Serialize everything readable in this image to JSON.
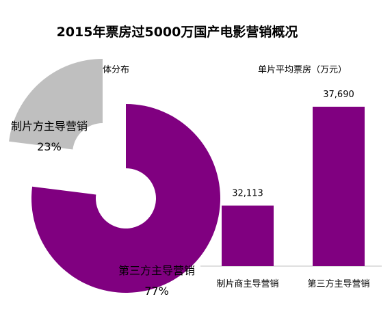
{
  "title": "2015年票房过5000万国产电影营销概况",
  "colors": {
    "primary": "#800080",
    "secondary": "#bfbfbf",
    "axis": "#bfbfbf",
    "background": "#ffffff"
  },
  "chart_data": [
    {
      "type": "pie",
      "variant": "donut-exploded",
      "title": "营销主体分布",
      "categories": [
        "制片方主导营销",
        "第三方主导营销"
      ],
      "values": [
        23,
        77
      ],
      "percent_labels": [
        "23%",
        "77%"
      ],
      "colors": [
        "#bfbfbf",
        "#800080"
      ],
      "legend": "none"
    },
    {
      "type": "bar",
      "title": "单片平均票房（万元）",
      "categories": [
        "制片商主导营销",
        "第三方主导营销"
      ],
      "values": [
        32113,
        37690
      ],
      "value_labels": [
        "32,113",
        "37,690"
      ],
      "ylim": [
        28700,
        37690
      ],
      "color": "#800080",
      "grid": false,
      "legend": "none"
    }
  ]
}
